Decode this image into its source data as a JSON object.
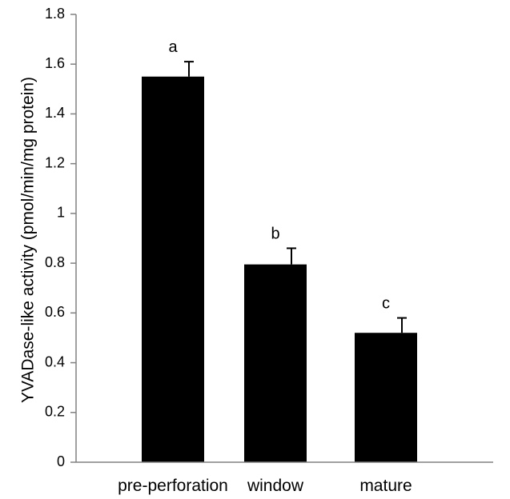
{
  "chart_data": {
    "type": "bar",
    "categories": [
      "pre-perforation",
      "window",
      "mature"
    ],
    "values": [
      1.55,
      0.795,
      0.52
    ],
    "errors": [
      0.06,
      0.065,
      0.06
    ],
    "significance_labels": [
      "a",
      "b",
      "c"
    ],
    "ylabel": "YVADase-like activity (pmol/min/mg protein)",
    "ylim": [
      0,
      1.8
    ],
    "yticks": [
      0,
      0.2,
      0.4,
      0.6,
      0.8,
      1,
      1.2,
      1.4,
      1.6,
      1.8
    ],
    "ytick_labels": [
      "0",
      "0.2",
      "0.4",
      "0.6",
      "0.8",
      "1",
      "1.2",
      "1.4",
      "1.6",
      "1.8"
    ],
    "bar_color": "#000000",
    "grid": false,
    "legend": "none"
  }
}
